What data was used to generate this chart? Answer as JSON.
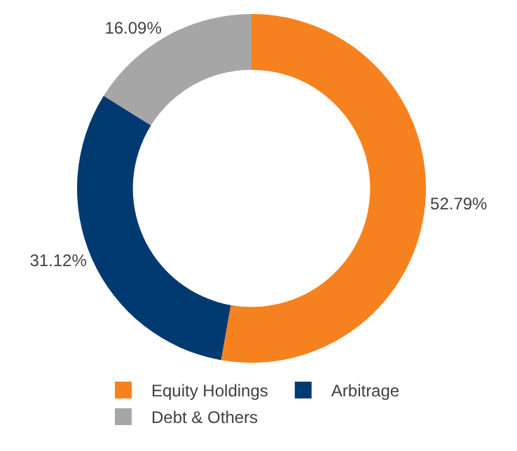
{
  "chart_data": {
    "type": "donut",
    "categories": [
      "Equity Holdings",
      "Arbitrage",
      "Debt & Others"
    ],
    "values": [
      52.79,
      31.12,
      16.09
    ],
    "colors": [
      "#f5821f",
      "#003a70",
      "#a6a6a6"
    ],
    "value_labels": [
      "52.79%",
      "31.12%",
      "16.09%"
    ],
    "legend": "bottom"
  }
}
